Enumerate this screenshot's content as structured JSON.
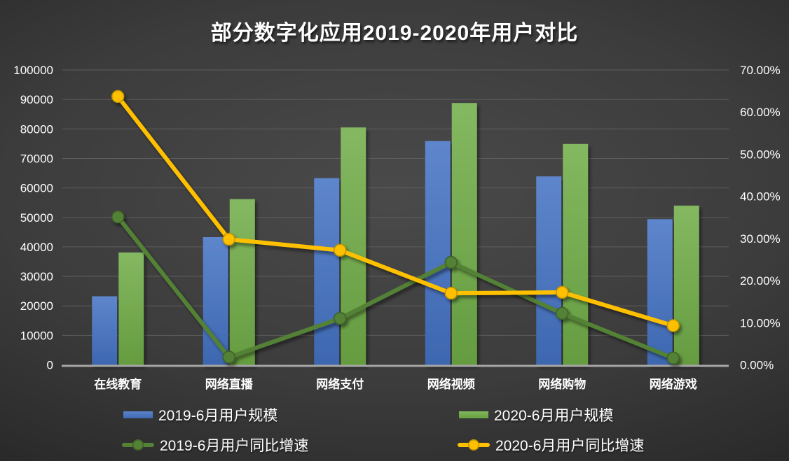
{
  "title": "部分数字化应用2019-2020年用户对比",
  "chart_data": {
    "type": "combo-bar-line",
    "categories": [
      "在线教育",
      "网络直播",
      "网络支付",
      "网络视频",
      "网络购物",
      "网络游戏"
    ],
    "series": [
      {
        "name": "2019-6月用户规模",
        "type": "bar",
        "axis": "left",
        "values": [
          23246,
          43300,
          63305,
          75900,
          63900,
          49400
        ]
      },
      {
        "name": "2020-6月用户规模",
        "type": "bar",
        "axis": "left",
        "values": [
          38100,
          56200,
          80500,
          88800,
          74900,
          54000
        ]
      },
      {
        "name": "2019-6月用户同比增速",
        "type": "line",
        "axis": "right",
        "values_percent": [
          35.1,
          1.8,
          11.0,
          24.3,
          12.2,
          1.6
        ]
      },
      {
        "name": "2020-6月用户同比增速",
        "type": "line",
        "axis": "right",
        "values_percent": [
          63.7,
          29.8,
          27.2,
          17.0,
          17.2,
          9.3
        ]
      }
    ],
    "left_axis": {
      "min": 0,
      "max": 100000,
      "step": 10000,
      "ticks": [
        "0",
        "10000",
        "20000",
        "30000",
        "40000",
        "50000",
        "60000",
        "70000",
        "80000",
        "90000",
        "100000"
      ]
    },
    "right_axis": {
      "min": 0,
      "max": 70,
      "step": 10,
      "ticks": [
        "0.00%",
        "10.00%",
        "20.00%",
        "30.00%",
        "40.00%",
        "50.00%",
        "60.00%",
        "70.00%"
      ]
    },
    "grid": {
      "horizontal": true,
      "vertical": false
    },
    "legend_position": "bottom-two-rows"
  },
  "colors": {
    "bar_2019": "#4472C4",
    "bar_2020": "#70AD47",
    "line_2019_growth": "#538135",
    "line_2020_growth": "#FFC000",
    "background": "#3C3C3C",
    "text": "#FFFFFF",
    "gridline": "#5E5E5E",
    "axis_baseline": "#A6A6A6"
  }
}
